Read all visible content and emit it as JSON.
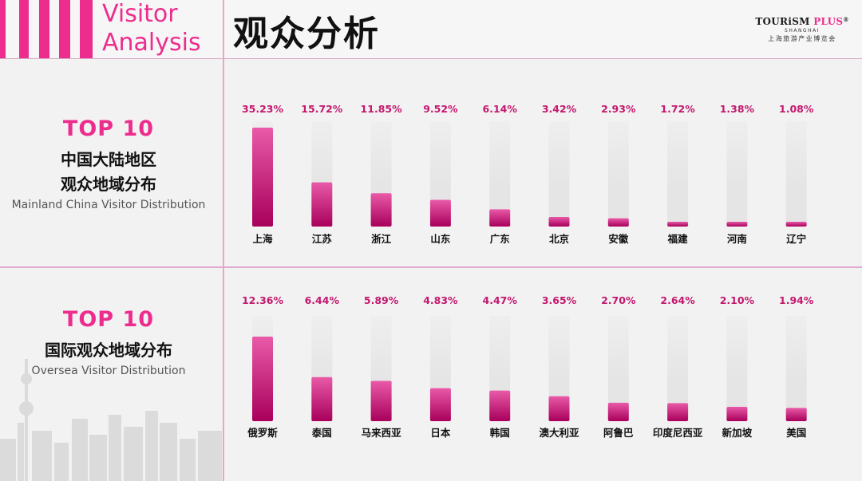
{
  "header": {
    "title_en_line1": "Visitor",
    "title_en_line2": "Analysis",
    "title_cn": "观众分析",
    "logo_main_a": "TOURiSM ",
    "logo_main_b": "PLUS",
    "logo_reg": "®",
    "logo_sub": "SHANGHAI",
    "logo_cn": "上海旅游产业博览会"
  },
  "section1": {
    "top10": "TOP 10",
    "cn_line1": "中国大陆地区",
    "cn_line2": "观众地域分布",
    "en": "Mainland China Visitor Distribution"
  },
  "section2": {
    "top10": "TOP 10",
    "cn_line1": "国际观众地域分布",
    "en": "Oversea Visitor Distribution"
  },
  "colors": {
    "accent": "#ec2d8e",
    "bar_top": "#e95aa8",
    "bar_bottom": "#a8005b",
    "track": "#e6e5e5"
  },
  "chart_data": [
    {
      "type": "bar",
      "categories": [
        "上海",
        "江苏",
        "浙江",
        "山东",
        "广东",
        "北京",
        "安徽",
        "福建",
        "河南",
        "辽宁"
      ],
      "values": [
        35.23,
        15.72,
        11.85,
        9.52,
        6.14,
        3.42,
        2.93,
        1.72,
        1.38,
        1.08
      ],
      "labels": [
        "35.23%",
        "15.72%",
        "11.85%",
        "9.52%",
        "6.14%",
        "3.42%",
        "2.93%",
        "1.72%",
        "1.38%",
        "1.08%"
      ],
      "ylim": [
        0,
        35.23
      ]
    },
    {
      "type": "bar",
      "categories": [
        "俄罗斯",
        "泰国",
        "马来西亚",
        "日本",
        "韩国",
        "澳大利亚",
        "阿鲁巴",
        "印度尼西亚",
        "新加坡",
        "美国"
      ],
      "values": [
        12.36,
        6.44,
        5.89,
        4.83,
        4.47,
        3.65,
        2.7,
        2.64,
        2.1,
        1.94
      ],
      "labels": [
        "12.36%",
        "6.44%",
        "5.89%",
        "4.83%",
        "4.47%",
        "3.65%",
        "2.70%",
        "2.64%",
        "2.10%",
        "1.94%"
      ],
      "ylim": [
        0,
        12.36
      ]
    }
  ]
}
